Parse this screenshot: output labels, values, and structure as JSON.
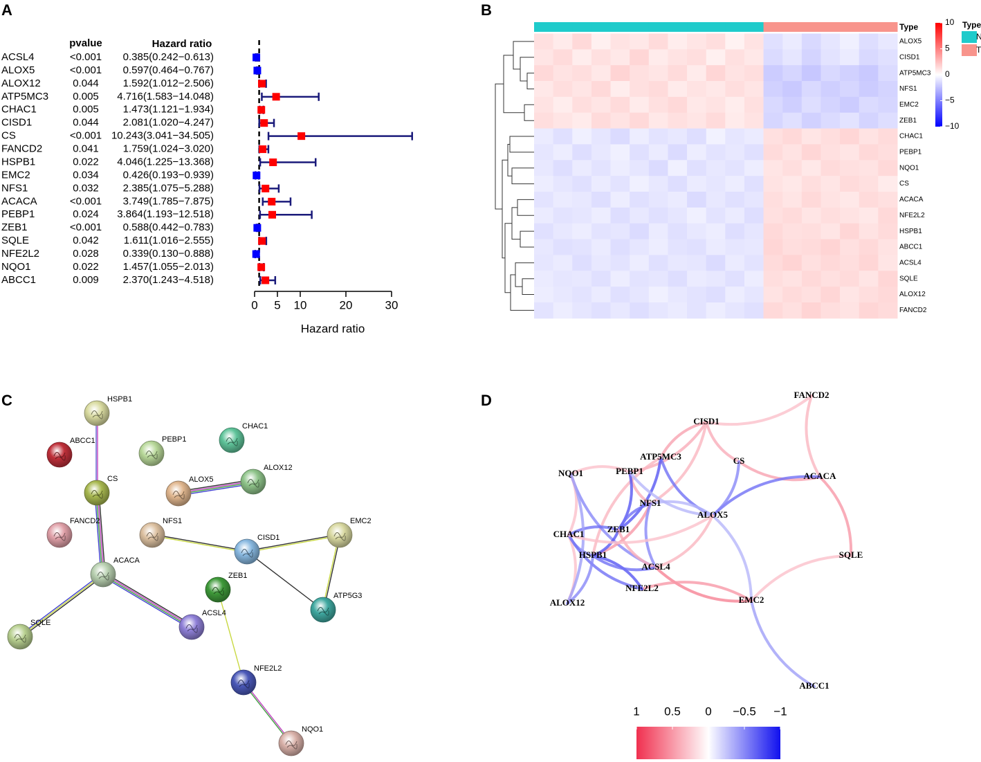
{
  "panel_labels": [
    "A",
    "B",
    "C",
    "D"
  ],
  "chart_data": [
    {
      "type": "forest",
      "columns": [
        "pvalue",
        "Hazard ratio"
      ],
      "categories": [
        "ACSL4",
        "ALOX5",
        "ALOX12",
        "ATP5MC3",
        "CHAC1",
        "CISD1",
        "CS",
        "FANCD2",
        "HSPB1",
        "EMC2",
        "NFS1",
        "ACACA",
        "PEBP1",
        "ZEB1",
        "SQLE",
        "NFE2L2",
        "NQO1",
        "ABCC1"
      ],
      "pvalues": [
        "<0.001",
        "<0.001",
        "0.044",
        "0.005",
        "0.005",
        "0.044",
        "<0.001",
        "0.041",
        "0.022",
        "0.034",
        "0.032",
        "<0.001",
        "0.024",
        "<0.001",
        "0.042",
        "0.028",
        "0.022",
        "0.009"
      ],
      "values": [
        0.385,
        0.597,
        1.592,
        4.716,
        1.473,
        2.081,
        10.243,
        1.759,
        4.046,
        0.426,
        2.385,
        3.749,
        3.864,
        0.588,
        1.611,
        0.339,
        1.457,
        2.37
      ],
      "lower": [
        0.242,
        0.464,
        1.012,
        1.583,
        1.121,
        1.02,
        3.041,
        1.024,
        1.225,
        0.193,
        1.075,
        1.785,
        1.193,
        0.442,
        1.016,
        0.13,
        1.055,
        1.243
      ],
      "upper": [
        0.613,
        0.767,
        2.506,
        14.048,
        1.934,
        4.247,
        34.505,
        3.02,
        13.368,
        0.939,
        5.288,
        7.875,
        12.518,
        0.783,
        2.555,
        0.888,
        2.013,
        4.518
      ],
      "value_labels": [
        "0.385(0.242−0.613)",
        "0.597(0.464−0.767)",
        "1.592(1.012−2.506)",
        "4.716(1.583−14.048)",
        "1.473(1.121−1.934)",
        "2.081(1.020−4.247)",
        "10.243(3.041−34.505)",
        "1.759(1.024−3.020)",
        "4.046(1.225−13.368)",
        "0.426(0.193−0.939)",
        "2.385(1.075−5.288)",
        "3.749(1.785−7.875)",
        "3.864(1.193−12.518)",
        "0.588(0.442−0.783)",
        "1.611(1.016−2.555)",
        "0.339(0.130−0.888)",
        "1.457(1.055−2.013)",
        "2.370(1.243−4.518)"
      ],
      "xlabel": "Hazard ratio",
      "xlim": [
        0,
        30
      ],
      "xticks": [
        0,
        5,
        10,
        20,
        30
      ],
      "reference_line": 1,
      "colors": {
        "above": "#ff0000",
        "below": "#0000ff",
        "whisker": "#1a1a7a"
      }
    },
    {
      "type": "heatmap",
      "rows": [
        "ALOX5",
        "CISD1",
        "ATP5MC3",
        "NFS1",
        "EMC2",
        "ZEB1",
        "CHAC1",
        "PEBP1",
        "NQO1",
        "CS",
        "ACACA",
        "NFE2L2",
        "HSPB1",
        "ABCC1",
        "ACSL4",
        "SQLE",
        "ALOX12",
        "FANCD2"
      ],
      "column_types": [
        "N",
        "N",
        "N",
        "N",
        "N",
        "N",
        "N",
        "N",
        "N",
        "N",
        "N",
        "N",
        "T",
        "T",
        "T",
        "T",
        "T",
        "T",
        "T"
      ],
      "legend_title": "Type",
      "types": [
        {
          "name": "N",
          "color": "#1fcbcb"
        },
        {
          "name": "T",
          "color": "#f8948c"
        }
      ],
      "clim": [
        -10,
        10
      ],
      "colorscale": {
        "low": "#0000ff",
        "mid": "#ffffff",
        "high": "#ff0000"
      },
      "colorbar_ticks": [
        10,
        5,
        0,
        {
          "value": -5,
          "label": "−5"
        },
        {
          "value": -10,
          "label": "−10"
        }
      ],
      "values": [
        [
          1.2,
          0.8,
          1.5,
          0.6,
          1.1,
          0.9,
          1.4,
          0.7,
          1.0,
          1.3,
          0.5,
          1.1,
          -1.2,
          -0.8,
          -1.5,
          -1.0,
          -0.6,
          -1.3,
          -0.9
        ],
        [
          1.0,
          1.4,
          0.7,
          1.2,
          0.9,
          1.6,
          0.8,
          1.1,
          1.3,
          0.6,
          1.2,
          0.9,
          -1.4,
          -1.0,
          -1.7,
          -1.1,
          -0.8,
          -1.5,
          -1.2
        ],
        [
          1.5,
          1.1,
          1.3,
          0.9,
          1.7,
          1.2,
          1.0,
          1.4,
          0.8,
          1.6,
          1.1,
          1.3,
          -2.0,
          -1.6,
          -2.2,
          -1.5,
          -1.8,
          -2.1,
          -1.4
        ],
        [
          0.9,
          1.3,
          1.0,
          1.5,
          0.7,
          1.2,
          1.4,
          0.8,
          1.1,
          0.9,
          1.3,
          1.0,
          -1.8,
          -2.1,
          -1.5,
          -1.9,
          -1.6,
          -2.0,
          -1.7
        ],
        [
          1.1,
          0.7,
          1.3,
          1.0,
          1.4,
          0.8,
          1.2,
          1.5,
          0.9,
          1.1,
          0.7,
          1.2,
          -1.5,
          -1.9,
          -1.3,
          -1.7,
          -2.0,
          -1.4,
          -1.6
        ],
        [
          1.3,
          1.0,
          0.8,
          1.4,
          1.1,
          1.5,
          0.9,
          1.2,
          1.0,
          1.4,
          0.8,
          1.1,
          -1.6,
          -1.2,
          -1.8,
          -1.4,
          -1.1,
          -1.7,
          -1.3
        ],
        [
          -0.8,
          -1.2,
          -0.6,
          -1.0,
          -1.4,
          -0.7,
          -1.1,
          -0.9,
          -1.3,
          -0.5,
          -1.0,
          -0.8,
          1.2,
          1.5,
          1.0,
          1.3,
          1.6,
          1.1,
          1.4
        ],
        [
          -1.0,
          -0.7,
          -1.3,
          -0.9,
          -0.6,
          -1.2,
          -0.8,
          -1.4,
          -0.7,
          -1.1,
          -0.9,
          -1.2,
          1.4,
          1.1,
          1.6,
          1.2,
          1.0,
          1.5,
          1.3
        ],
        [
          -0.9,
          -1.3,
          -0.8,
          -1.1,
          -0.7,
          -1.0,
          -1.4,
          -0.6,
          -1.2,
          -0.9,
          -1.1,
          -0.7,
          1.0,
          1.3,
          0.9,
          1.4,
          1.2,
          1.1,
          1.5
        ],
        [
          -0.7,
          -1.0,
          -1.2,
          -0.8,
          -1.1,
          -0.6,
          -0.9,
          -1.3,
          -0.8,
          -1.0,
          -0.7,
          -1.2,
          1.1,
          0.9,
          1.3,
          1.0,
          1.4,
          1.2,
          0.8
        ],
        [
          -1.1,
          -0.8,
          -0.9,
          -1.3,
          -0.7,
          -1.2,
          -1.0,
          -0.8,
          -1.4,
          -0.9,
          -1.2,
          -1.0,
          1.3,
          1.0,
          1.5,
          1.1,
          0.9,
          1.4,
          1.2
        ],
        [
          -0.8,
          -1.1,
          -1.0,
          -0.7,
          -1.3,
          -0.9,
          -1.2,
          -1.0,
          -0.6,
          -1.1,
          -0.8,
          -1.3,
          1.2,
          1.4,
          1.0,
          1.3,
          1.1,
          0.9,
          1.5
        ],
        [
          -1.2,
          -0.9,
          -0.7,
          -1.1,
          -1.0,
          -1.4,
          -0.8,
          -1.2,
          -0.9,
          -0.7,
          -1.3,
          -1.0,
          1.5,
          1.2,
          1.3,
          1.0,
          1.6,
          1.1,
          1.4
        ],
        [
          -0.9,
          -1.2,
          -1.1,
          -0.8,
          -1.3,
          -1.0,
          -0.7,
          -1.1,
          -1.2,
          -0.8,
          -1.0,
          -0.9,
          1.6,
          1.3,
          1.4,
          1.7,
          1.2,
          1.5,
          1.1
        ],
        [
          -1.0,
          -0.8,
          -1.3,
          -0.9,
          -1.1,
          -0.7,
          -1.2,
          -0.9,
          -1.0,
          -1.4,
          -0.8,
          -1.1,
          1.4,
          1.7,
          1.2,
          1.5,
          1.3,
          1.6,
          1.0
        ],
        [
          -0.8,
          -1.0,
          -0.9,
          -1.2,
          -0.7,
          -1.1,
          -1.0,
          -1.3,
          -0.8,
          -0.9,
          -1.2,
          -0.7,
          1.3,
          1.1,
          1.5,
          1.2,
          1.4,
          1.0,
          1.6
        ],
        [
          -0.7,
          -0.9,
          -1.1,
          -0.8,
          -1.2,
          -1.0,
          -0.6,
          -0.9,
          -1.1,
          -1.3,
          -0.7,
          -1.0,
          1.1,
          1.4,
          1.2,
          1.6,
          1.0,
          1.3,
          1.5
        ],
        [
          -1.1,
          -0.7,
          -1.0,
          -1.2,
          -0.9,
          -1.3,
          -1.0,
          -0.8,
          -1.1,
          -0.7,
          -1.0,
          -1.2,
          1.5,
          1.2,
          1.7,
          1.3,
          1.1,
          1.6,
          1.4
        ]
      ]
    }
  ],
  "string_network": {
    "nodes": [
      {
        "label": "HSPB1",
        "color": "#d9dba0"
      },
      {
        "label": "ABCC1",
        "color": "#c0303a"
      },
      {
        "label": "PEBP1",
        "color": "#b8d899"
      },
      {
        "label": "CHAC1",
        "color": "#5fc49a"
      },
      {
        "label": "ALOX12",
        "color": "#8fc48a"
      },
      {
        "label": "ALOX5",
        "color": "#e0b68e"
      },
      {
        "label": "CS",
        "color": "#a8b850"
      },
      {
        "label": "FANCD2",
        "color": "#e0a0a8"
      },
      {
        "label": "NFS1",
        "color": "#dcc0a0"
      },
      {
        "label": "EMC2",
        "color": "#d8d8a0"
      },
      {
        "label": "CISD1",
        "color": "#88b8e0"
      },
      {
        "label": "ACACA",
        "color": "#b8d0b0"
      },
      {
        "label": "ZEB1",
        "color": "#3f9a3a"
      },
      {
        "label": "ATP5G3",
        "color": "#3fa8a0"
      },
      {
        "label": "SQLE",
        "color": "#b8d090"
      },
      {
        "label": "ACSL4",
        "color": "#8f80d8"
      },
      {
        "label": "NFE2L2",
        "color": "#4a58b8"
      },
      {
        "label": "NQO1",
        "color": "#d8b0a8"
      }
    ],
    "edges": [
      {
        "source": "HSPB1",
        "target": "CS",
        "colors": [
          "#c040c0",
          "#6060d0"
        ]
      },
      {
        "source": "CS",
        "target": "ACACA",
        "colors": [
          "#303030",
          "#c040c0",
          "#40a040",
          "#4040d0"
        ]
      },
      {
        "source": "ALOX5",
        "target": "ALOX12",
        "colors": [
          "#303030",
          "#c040c0",
          "#40a040",
          "#4040d0"
        ]
      },
      {
        "source": "NFS1",
        "target": "CISD1",
        "colors": [
          "#303030",
          "#c8d840"
        ]
      },
      {
        "source": "CISD1",
        "target": "EMC2",
        "colors": [
          "#303030",
          "#c8d840"
        ]
      },
      {
        "source": "CISD1",
        "target": "ATP5G3",
        "colors": [
          "#303030"
        ]
      },
      {
        "source": "EMC2",
        "target": "ATP5G3",
        "colors": [
          "#303030",
          "#c8d840"
        ]
      },
      {
        "source": "ACACA",
        "target": "SQLE",
        "colors": [
          "#303030",
          "#c8d840",
          "#4040d0"
        ]
      },
      {
        "source": "ACACA",
        "target": "ACSL4",
        "colors": [
          "#303030",
          "#c040c0",
          "#40a040",
          "#4040d0"
        ]
      },
      {
        "source": "ZEB1",
        "target": "NFE2L2",
        "colors": [
          "#c8d840"
        ]
      },
      {
        "source": "NFE2L2",
        "target": "NQO1",
        "colors": [
          "#c040c0",
          "#40a040"
        ]
      }
    ]
  },
  "correlation_network": {
    "nodes": [
      "FANCD2",
      "CISD1",
      "ATP5MC3",
      "CS",
      "NQO1",
      "PEBP1",
      "ACACA",
      "NFS1",
      "ALOX5",
      "CHAC1",
      "ZEB1",
      "HSPB1",
      "SQLE",
      "ACSL4",
      "NFE2L2",
      "ALOX12",
      "EMC2",
      "ABCC1"
    ],
    "edges": [
      {
        "source": "FANCD2",
        "target": "CISD1",
        "r": 0.3
      },
      {
        "source": "FANCD2",
        "target": "ACACA",
        "r": 0.35
      },
      {
        "source": "ACACA",
        "target": "SQLE",
        "r": 0.5
      },
      {
        "source": "SQLE",
        "target": "EMC2",
        "r": 0.3
      },
      {
        "source": "CS",
        "target": "CISD1",
        "r": 0.4
      },
      {
        "source": "CS",
        "target": "ACACA",
        "r": 0.45
      },
      {
        "source": "ALOX5",
        "target": "ACACA",
        "r": -0.6
      },
      {
        "source": "ALOX5",
        "target": "CS",
        "r": -0.5
      },
      {
        "source": "ALOX5",
        "target": "EMC2",
        "r": -0.3
      },
      {
        "source": "EMC2",
        "target": "ABCC1",
        "r": -0.4
      },
      {
        "source": "EMC2",
        "target": "ACSL4",
        "r": 0.6
      },
      {
        "source": "EMC2",
        "target": "NFE2L2",
        "r": 0.5
      },
      {
        "source": "CISD1",
        "target": "PEBP1",
        "r": 0.4
      },
      {
        "source": "CISD1",
        "target": "ATP5MC3",
        "r": 0.45
      },
      {
        "source": "CISD1",
        "target": "NFS1",
        "r": 0.35
      },
      {
        "source": "ATP5MC3",
        "target": "ALOX5",
        "r": -0.6
      },
      {
        "source": "ATP5MC3",
        "target": "ZEB1",
        "r": -0.7
      },
      {
        "source": "ATP5MC3",
        "target": "HSPB1",
        "r": 0.35
      },
      {
        "source": "NQO1",
        "target": "PEBP1",
        "r": 0.3
      },
      {
        "source": "NQO1",
        "target": "ACSL4",
        "r": -0.5
      },
      {
        "source": "NQO1",
        "target": "CHAC1",
        "r": 0.3
      },
      {
        "source": "PEBP1",
        "target": "NFS1",
        "r": 0.4
      },
      {
        "source": "PEBP1",
        "target": "ZEB1",
        "r": -0.7
      },
      {
        "source": "PEBP1",
        "target": "ALOX5",
        "r": -0.3
      },
      {
        "source": "NFS1",
        "target": "ALOX5",
        "r": -0.3
      },
      {
        "source": "NFS1",
        "target": "ZEB1",
        "r": -0.6
      },
      {
        "source": "NFS1",
        "target": "HSPB1",
        "r": 0.5
      },
      {
        "source": "NFS1",
        "target": "ACSL4",
        "r": -0.5
      },
      {
        "source": "CHAC1",
        "target": "ZEB1",
        "r": -0.6
      },
      {
        "source": "CHAC1",
        "target": "HSPB1",
        "r": -0.5
      },
      {
        "source": "CHAC1",
        "target": "ALOX12",
        "r": 0.3
      },
      {
        "source": "CHAC1",
        "target": "NFE2L2",
        "r": -0.6
      },
      {
        "source": "ZEB1",
        "target": "HSPB1",
        "r": -0.7
      },
      {
        "source": "ZEB1",
        "target": "ACSL4",
        "r": 0.4
      },
      {
        "source": "HSPB1",
        "target": "NFE2L2",
        "r": -0.7
      },
      {
        "source": "HSPB1",
        "target": "ACSL4",
        "r": -0.6
      },
      {
        "source": "HSPB1",
        "target": "ALOX12",
        "r": -0.5
      },
      {
        "source": "ALOX12",
        "target": "NQO1",
        "r": -0.4
      },
      {
        "source": "ALOX5",
        "target": "CHAC1",
        "r": 0.3
      },
      {
        "source": "ACSL4",
        "target": "ALOX5",
        "r": 0.35
      }
    ],
    "colorbar": {
      "xlim": [
        1,
        -1
      ],
      "ticks": [
        1,
        0.5,
        0,
        {
          "value": -0.5,
          "label": "−0.5"
        },
        {
          "value": -1,
          "label": "−1"
        }
      ],
      "colorscale": {
        "low": "#1010ee",
        "mid": "#ffffff",
        "high": "#f0304f"
      }
    }
  }
}
